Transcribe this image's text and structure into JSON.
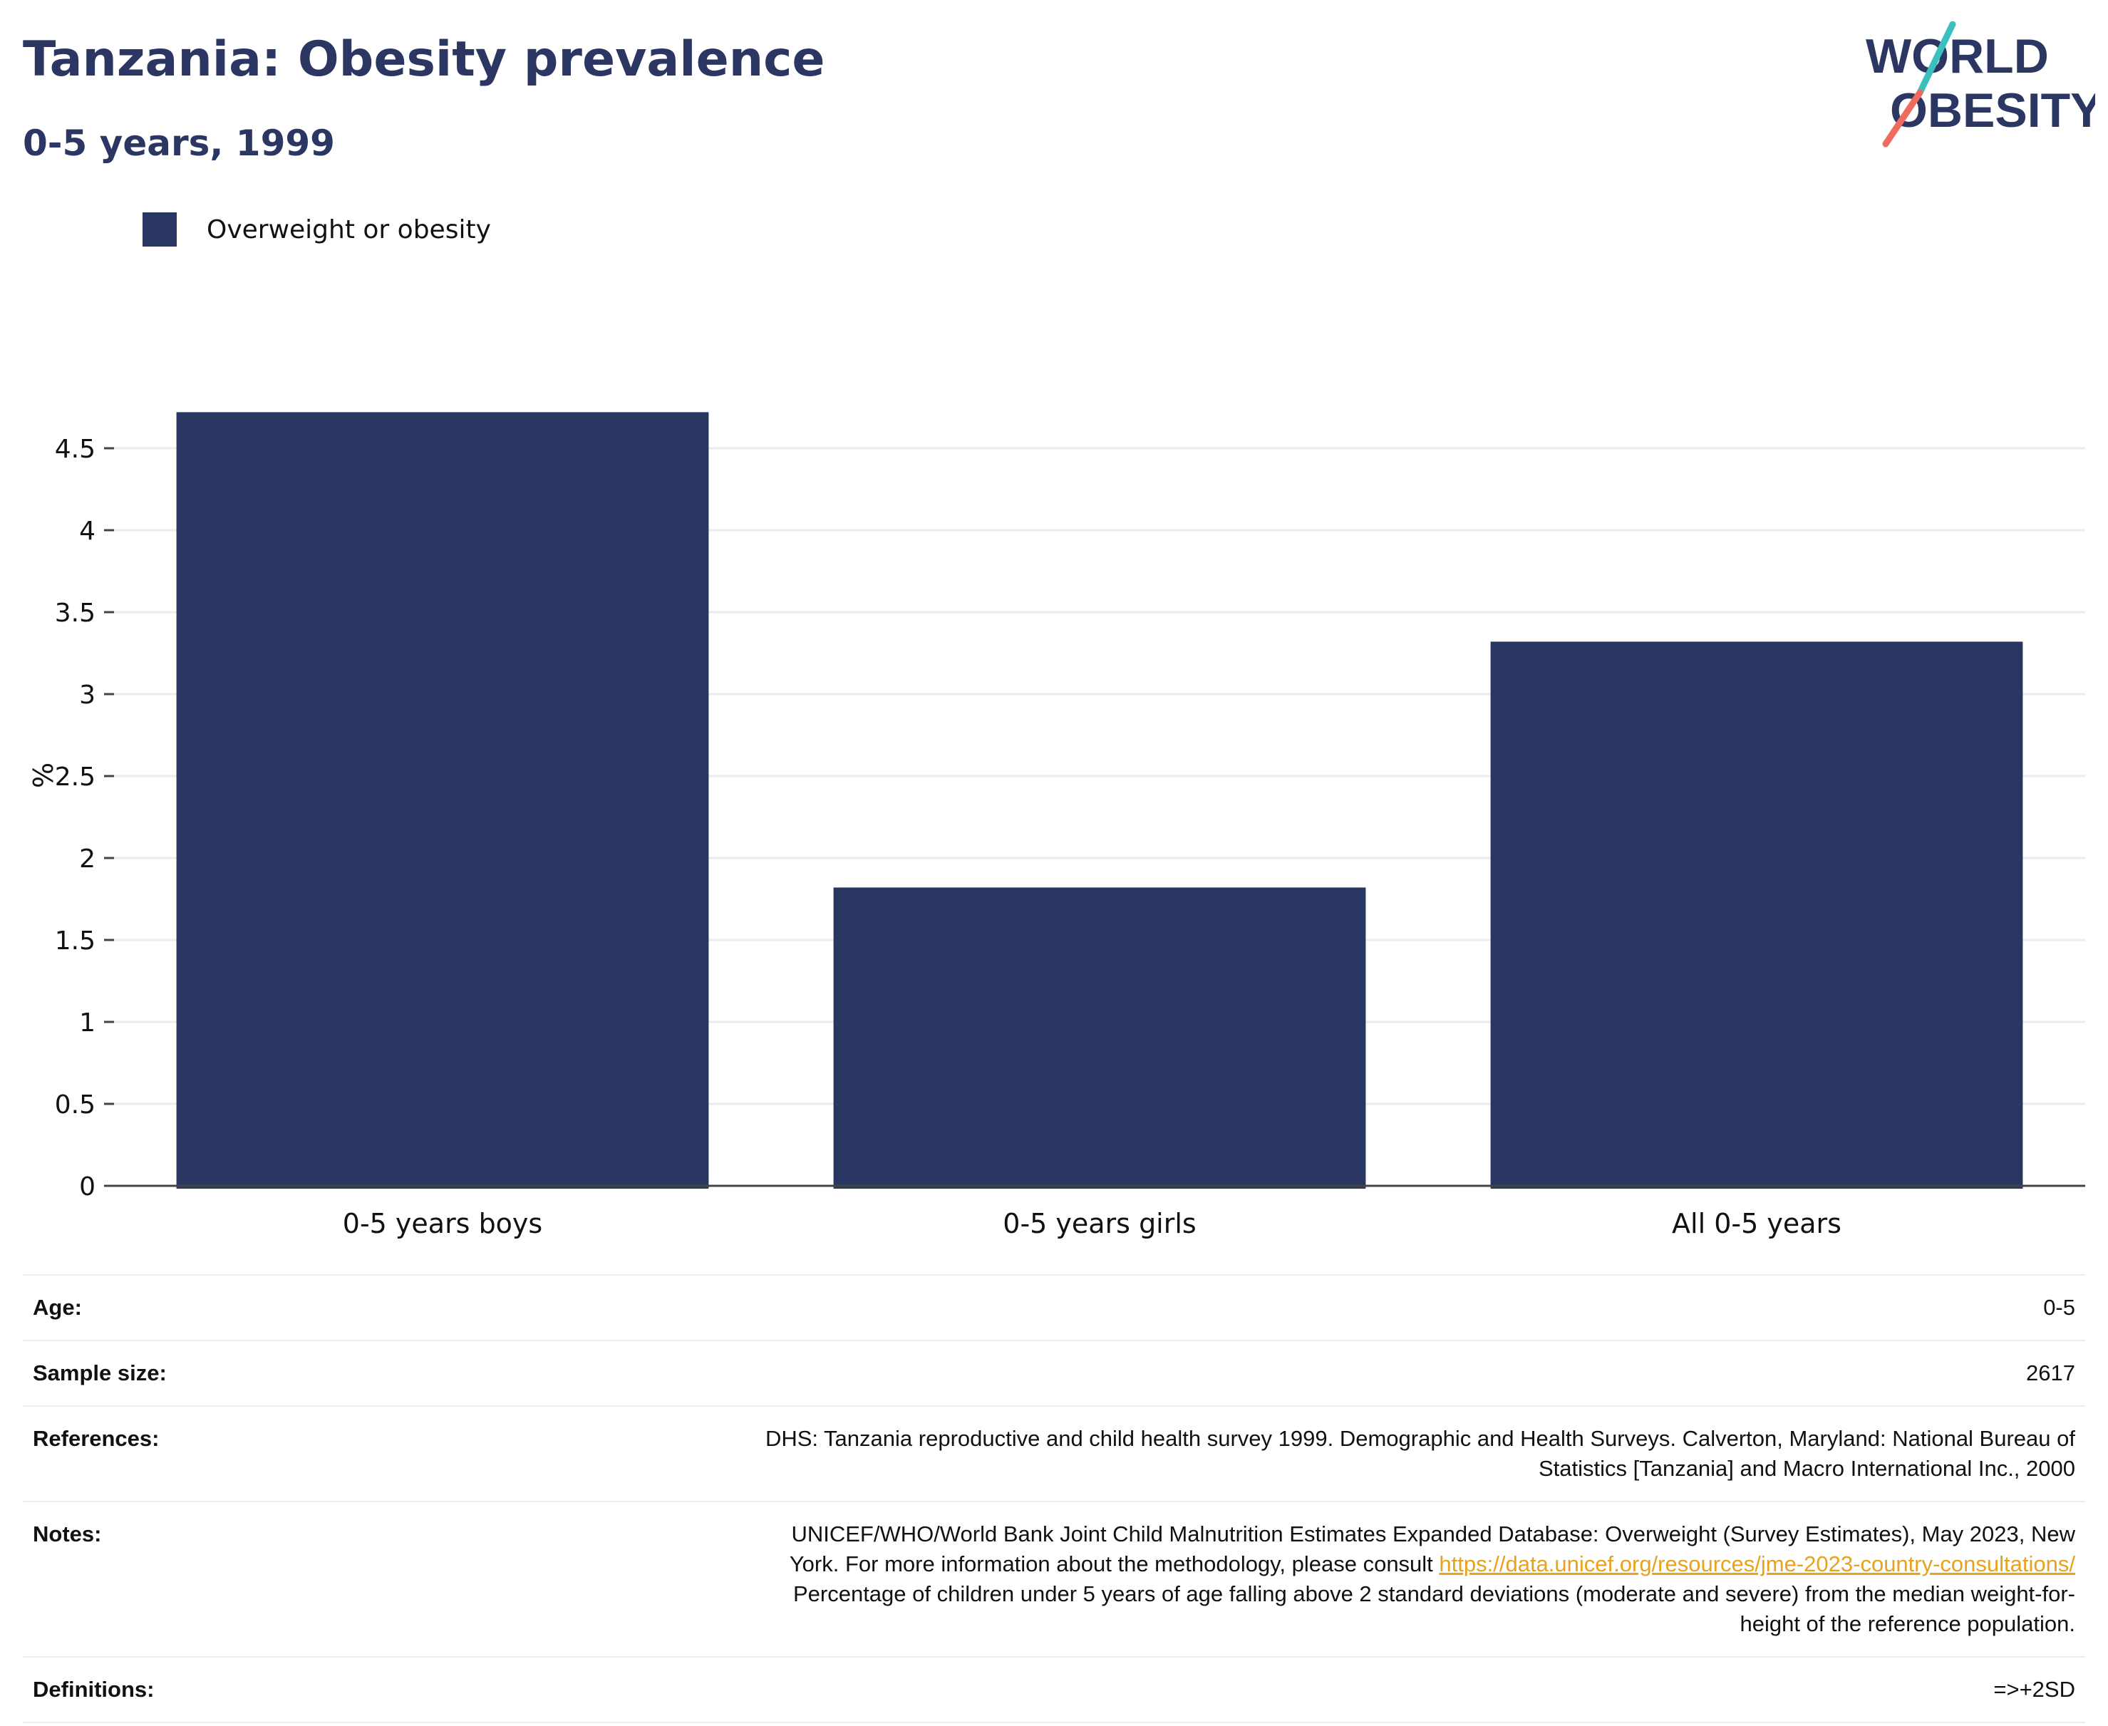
{
  "header": {
    "title": "Tanzania: Obesity prevalence",
    "subtitle": "0-5 years, 1999"
  },
  "logo": {
    "line1": "WORLD",
    "line2": "OBESITY"
  },
  "chart_data": {
    "type": "bar",
    "categories": [
      "0-5 years boys",
      "0-5 years girls",
      "All 0-5 years"
    ],
    "series": [
      {
        "name": "Overweight or obesity",
        "values": [
          4.72,
          1.82,
          3.32
        ],
        "color": "#2a3662"
      }
    ],
    "ylabel": "%",
    "xlabel": "",
    "ylim": [
      0,
      4.8
    ],
    "yticks": [
      0,
      0.5,
      1,
      1.5,
      2,
      2.5,
      3,
      3.5,
      4,
      4.5
    ],
    "ytick_labels": [
      "0",
      "0.5",
      "1",
      "1.5",
      "2",
      "2.5",
      "3",
      "3.5",
      "4",
      "4.5"
    ],
    "grid": true,
    "legend_position": "top-left"
  },
  "info": {
    "age_label": "Age:",
    "age_value": "0-5",
    "sample_label": "Sample size:",
    "sample_value": "2617",
    "references_label": "References:",
    "references_line1": "DHS: Tanzania reproductive and child health survey 1999. Demographic and Health Surveys. Calverton, Maryland: National Bureau of",
    "references_line2": "Statistics [Tanzania] and Macro International Inc., 2000",
    "notes_label": "Notes:",
    "notes_line1": "UNICEF/WHO/World Bank Joint Child Malnutrition Estimates Expanded Database: Overweight (Survey Estimates), May 2023, New",
    "notes_line2_prefix": "York. For more information about the methodology, please consult ",
    "notes_link": "https://data.unicef.org/resources/jme-2023-country-consultations/",
    "notes_line3": "Percentage of children under 5 years of age falling above 2 standard deviations (moderate and severe) from the median weight-for-",
    "notes_line4": "height of the reference population.",
    "definitions_label": "Definitions:",
    "definitions_value": "=>+2SD"
  },
  "colors": {
    "title": "#2b3663",
    "bar": "#2a3662",
    "logo_teal": "#3bbfbf",
    "logo_coral": "#ee6b5e",
    "link": "#e8a21c"
  }
}
